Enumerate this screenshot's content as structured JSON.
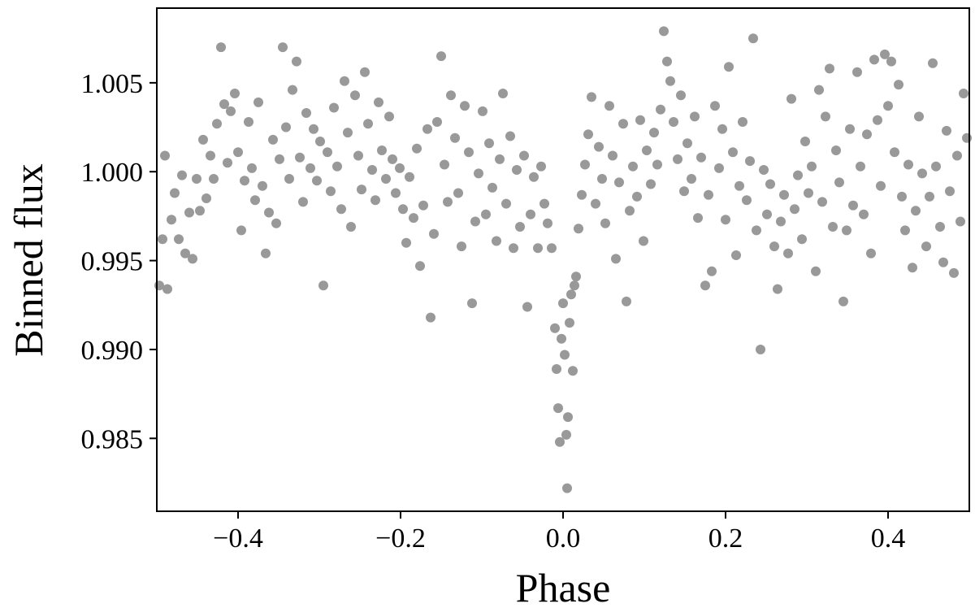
{
  "chart_data": {
    "type": "scatter",
    "xlabel": "Phase",
    "ylabel": "Binned flux",
    "xlim": [
      -0.5,
      0.5
    ],
    "ylim": [
      0.9809,
      1.0092
    ],
    "x_ticks": [
      -0.4,
      -0.2,
      0.0,
      0.2,
      0.4
    ],
    "x_tick_labels": [
      "−0.4",
      "−0.2",
      "0.0",
      "0.2",
      "0.4"
    ],
    "y_ticks": [
      0.985,
      0.99,
      0.995,
      1.0,
      1.005
    ],
    "y_tick_labels": [
      "0.985",
      "0.990",
      "0.995",
      "1.000",
      "1.005"
    ],
    "grid": false,
    "marker_color": "#999999",
    "series": [
      {
        "points": [
          [
            -0.497,
            0.9936
          ],
          [
            -0.493,
            0.9962
          ],
          [
            -0.49,
            1.0009
          ],
          [
            -0.487,
            0.9934
          ],
          [
            -0.482,
            0.9973
          ],
          [
            -0.478,
            0.9988
          ],
          [
            -0.473,
            0.9962
          ],
          [
            -0.469,
            0.9998
          ],
          [
            -0.465,
            0.9954
          ],
          [
            -0.46,
            0.9977
          ],
          [
            -0.456,
            0.9951
          ],
          [
            -0.451,
            0.9996
          ],
          [
            -0.447,
            0.9978
          ],
          [
            -0.443,
            1.0018
          ],
          [
            -0.439,
            0.9985
          ],
          [
            -0.434,
            1.0009
          ],
          [
            -0.43,
            0.9996
          ],
          [
            -0.426,
            1.0027
          ],
          [
            -0.421,
            1.007
          ],
          [
            -0.417,
            1.0038
          ],
          [
            -0.413,
            1.0005
          ],
          [
            -0.409,
            1.0034
          ],
          [
            -0.404,
            1.0044
          ],
          [
            -0.4,
            1.0011
          ],
          [
            -0.396,
            0.9967
          ],
          [
            -0.392,
            0.9995
          ],
          [
            -0.387,
            1.0028
          ],
          [
            -0.383,
            1.0002
          ],
          [
            -0.379,
            0.9984
          ],
          [
            -0.375,
            1.0039
          ],
          [
            -0.37,
            0.9992
          ],
          [
            -0.366,
            0.9954
          ],
          [
            -0.362,
            0.9977
          ],
          [
            -0.357,
            1.0018
          ],
          [
            -0.353,
            0.9971
          ],
          [
            -0.349,
            1.0007
          ],
          [
            -0.345,
            1.007
          ],
          [
            -0.341,
            1.0025
          ],
          [
            -0.337,
            0.9996
          ],
          [
            -0.333,
            1.0046
          ],
          [
            -0.328,
            1.0062
          ],
          [
            -0.324,
            1.0008
          ],
          [
            -0.32,
            0.9983
          ],
          [
            -0.316,
            1.0033
          ],
          [
            -0.311,
            1.0002
          ],
          [
            -0.307,
            1.0024
          ],
          [
            -0.303,
            0.9995
          ],
          [
            -0.299,
            1.0017
          ],
          [
            -0.295,
            0.9936
          ],
          [
            -0.29,
            1.0011
          ],
          [
            -0.286,
            0.9989
          ],
          [
            -0.282,
            1.0036
          ],
          [
            -0.278,
            1.0003
          ],
          [
            -0.273,
            0.9979
          ],
          [
            -0.269,
            1.0051
          ],
          [
            -0.265,
            1.0022
          ],
          [
            -0.261,
            0.9969
          ],
          [
            -0.256,
            1.0043
          ],
          [
            -0.252,
            1.0009
          ],
          [
            -0.248,
            0.999
          ],
          [
            -0.244,
            1.0056
          ],
          [
            -0.24,
            1.0027
          ],
          [
            -0.235,
            1.0001
          ],
          [
            -0.231,
            0.9984
          ],
          [
            -0.227,
            1.0039
          ],
          [
            -0.223,
            1.0012
          ],
          [
            -0.218,
            0.9996
          ],
          [
            -0.214,
            1.0031
          ],
          [
            -0.21,
            1.0007
          ],
          [
            -0.206,
            0.9988
          ],
          [
            -0.201,
            1.0002
          ],
          [
            -0.197,
            0.9979
          ],
          [
            -0.193,
            0.996
          ],
          [
            -0.189,
            0.9997
          ],
          [
            -0.184,
            0.9974
          ],
          [
            -0.18,
            1.0013
          ],
          [
            -0.176,
            0.9947
          ],
          [
            -0.172,
            0.9981
          ],
          [
            -0.167,
            1.0024
          ],
          [
            -0.163,
            0.9918
          ],
          [
            -0.159,
            0.9965
          ],
          [
            -0.155,
            1.0028
          ],
          [
            -0.15,
            1.0065
          ],
          [
            -0.146,
            1.0004
          ],
          [
            -0.142,
            0.9983
          ],
          [
            -0.138,
            1.0043
          ],
          [
            -0.133,
            1.0019
          ],
          [
            -0.129,
            0.9988
          ],
          [
            -0.125,
            0.9958
          ],
          [
            -0.121,
            1.0037
          ],
          [
            -0.116,
            1.0011
          ],
          [
            -0.112,
            0.9926
          ],
          [
            -0.108,
            0.9972
          ],
          [
            -0.104,
            0.9999
          ],
          [
            -0.099,
            1.0034
          ],
          [
            -0.095,
            0.9976
          ],
          [
            -0.091,
            1.0016
          ],
          [
            -0.087,
            0.9991
          ],
          [
            -0.082,
            0.9961
          ],
          [
            -0.078,
            1.0007
          ],
          [
            -0.074,
            1.0044
          ],
          [
            -0.07,
            0.9982
          ],
          [
            -0.065,
            1.002
          ],
          [
            -0.061,
            0.9957
          ],
          [
            -0.057,
            1.0001
          ],
          [
            -0.053,
            0.9969
          ],
          [
            -0.048,
            1.0009
          ],
          [
            -0.044,
            0.9924
          ],
          [
            -0.04,
            0.9976
          ],
          [
            -0.036,
            0.9997
          ],
          [
            -0.031,
            0.9957
          ],
          [
            -0.027,
            1.0003
          ],
          [
            -0.023,
            0.9982
          ],
          [
            -0.019,
            0.9971
          ],
          [
            -0.014,
            0.9957
          ],
          [
            -0.01,
            0.9912
          ],
          [
            -0.008,
            0.9889
          ],
          [
            -0.006,
            0.9867
          ],
          [
            -0.004,
            0.9848
          ],
          [
            -0.002,
            0.9906
          ],
          [
            0.0,
            0.9926
          ],
          [
            0.002,
            0.9897
          ],
          [
            0.004,
            0.9852
          ],
          [
            0.005,
            0.9822
          ],
          [
            0.006,
            0.9862
          ],
          [
            0.008,
            0.9915
          ],
          [
            0.01,
            0.9931
          ],
          [
            0.012,
            0.9888
          ],
          [
            0.014,
            0.9936
          ],
          [
            0.016,
            0.9941
          ],
          [
            0.019,
            0.9968
          ],
          [
            0.023,
            0.9987
          ],
          [
            0.027,
            1.0004
          ],
          [
            0.031,
            1.0021
          ],
          [
            0.035,
            1.0042
          ],
          [
            0.04,
            0.9982
          ],
          [
            0.044,
            1.0014
          ],
          [
            0.048,
            0.9996
          ],
          [
            0.052,
            0.9971
          ],
          [
            0.057,
            1.0037
          ],
          [
            0.061,
            1.0009
          ],
          [
            0.065,
            0.9951
          ],
          [
            0.069,
            0.9994
          ],
          [
            0.074,
            1.0027
          ],
          [
            0.078,
            0.9927
          ],
          [
            0.082,
            0.9978
          ],
          [
            0.086,
            1.0003
          ],
          [
            0.091,
            0.9986
          ],
          [
            0.095,
            1.0029
          ],
          [
            0.099,
            0.9961
          ],
          [
            0.103,
            1.0012
          ],
          [
            0.108,
            0.9993
          ],
          [
            0.112,
            1.0022
          ],
          [
            0.116,
            1.0004
          ],
          [
            0.12,
            1.0035
          ],
          [
            0.124,
            1.0079
          ],
          [
            0.128,
            1.0062
          ],
          [
            0.132,
            1.0051
          ],
          [
            0.136,
            1.0028
          ],
          [
            0.141,
            1.0007
          ],
          [
            0.145,
            1.0043
          ],
          [
            0.149,
            0.9989
          ],
          [
            0.153,
            1.0016
          ],
          [
            0.158,
            0.9996
          ],
          [
            0.162,
            1.0031
          ],
          [
            0.166,
            0.9974
          ],
          [
            0.17,
            1.0008
          ],
          [
            0.175,
            0.9936
          ],
          [
            0.179,
            0.9987
          ],
          [
            0.183,
            0.9944
          ],
          [
            0.187,
            1.0037
          ],
          [
            0.192,
            1.0002
          ],
          [
            0.196,
            1.0024
          ],
          [
            0.2,
            0.9973
          ],
          [
            0.204,
            1.0059
          ],
          [
            0.209,
            1.0011
          ],
          [
            0.213,
            0.9953
          ],
          [
            0.217,
            0.9992
          ],
          [
            0.221,
            1.0028
          ],
          [
            0.226,
            0.9984
          ],
          [
            0.23,
            1.0006
          ],
          [
            0.234,
            1.0075
          ],
          [
            0.238,
            0.9967
          ],
          [
            0.243,
            0.99
          ],
          [
            0.247,
            1.0001
          ],
          [
            0.251,
            0.9976
          ],
          [
            0.255,
            0.9993
          ],
          [
            0.26,
            0.9958
          ],
          [
            0.264,
            0.9934
          ],
          [
            0.268,
            0.9972
          ],
          [
            0.272,
            0.9987
          ],
          [
            0.277,
            0.9954
          ],
          [
            0.281,
            1.0041
          ],
          [
            0.285,
            0.9979
          ],
          [
            0.289,
            0.9998
          ],
          [
            0.294,
            0.9962
          ],
          [
            0.298,
            1.0017
          ],
          [
            0.302,
            0.9988
          ],
          [
            0.306,
            1.0003
          ],
          [
            0.311,
            0.9944
          ],
          [
            0.315,
            1.0046
          ],
          [
            0.319,
            0.9983
          ],
          [
            0.323,
            1.0031
          ],
          [
            0.328,
            1.0058
          ],
          [
            0.332,
            0.9969
          ],
          [
            0.336,
            1.0012
          ],
          [
            0.34,
            0.9994
          ],
          [
            0.345,
            0.9927
          ],
          [
            0.349,
            0.9967
          ],
          [
            0.353,
            1.0024
          ],
          [
            0.357,
            0.9981
          ],
          [
            0.362,
            1.0056
          ],
          [
            0.366,
            1.0003
          ],
          [
            0.37,
            0.9976
          ],
          [
            0.374,
            1.0021
          ],
          [
            0.379,
            0.9954
          ],
          [
            0.383,
            1.0063
          ],
          [
            0.387,
            1.0029
          ],
          [
            0.391,
            0.9992
          ],
          [
            0.396,
            1.0066
          ],
          [
            0.4,
            1.0037
          ],
          [
            0.404,
            1.0062
          ],
          [
            0.408,
            1.0011
          ],
          [
            0.413,
            1.0049
          ],
          [
            0.417,
            0.9986
          ],
          [
            0.421,
            0.9967
          ],
          [
            0.425,
            1.0004
          ],
          [
            0.43,
            0.9946
          ],
          [
            0.434,
            0.9978
          ],
          [
            0.438,
            1.0031
          ],
          [
            0.442,
            0.9999
          ],
          [
            0.447,
            0.9958
          ],
          [
            0.451,
            0.9986
          ],
          [
            0.455,
            1.0061
          ],
          [
            0.459,
            1.0003
          ],
          [
            0.464,
            0.9969
          ],
          [
            0.468,
            0.9949
          ],
          [
            0.472,
            1.0023
          ],
          [
            0.476,
            0.9989
          ],
          [
            0.481,
            0.9943
          ],
          [
            0.485,
            1.0009
          ],
          [
            0.489,
            0.9972
          ],
          [
            0.493,
            1.0044
          ],
          [
            0.497,
            1.0019
          ]
        ]
      }
    ]
  }
}
